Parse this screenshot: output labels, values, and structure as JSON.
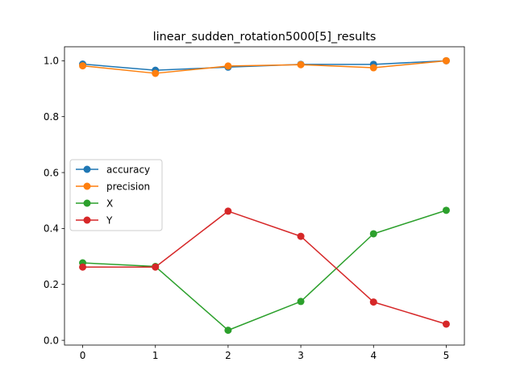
{
  "chart_data": {
    "type": "line",
    "title": "linear_sudden_rotation5000[5]_results",
    "xlabel": "",
    "ylabel": "",
    "x": [
      0,
      1,
      2,
      3,
      4,
      5
    ],
    "xticks": [
      "0",
      "1",
      "2",
      "3",
      "4",
      "5"
    ],
    "yticks": [
      "0.0",
      "0.2",
      "0.4",
      "0.6",
      "0.8",
      "1.0"
    ],
    "xlim": [
      -0.25,
      5.25
    ],
    "ylim": [
      -0.017,
      1.05
    ],
    "grid": false,
    "legend_position": "center-left",
    "series": [
      {
        "name": "accuracy",
        "color": "#1f77b4",
        "values": [
          0.988,
          0.966,
          0.977,
          0.987,
          0.987,
          1.0
        ]
      },
      {
        "name": "precision",
        "color": "#ff7f0e",
        "values": [
          0.982,
          0.955,
          0.981,
          0.986,
          0.975,
          1.0
        ]
      },
      {
        "name": "X",
        "color": "#2ca02c",
        "values": [
          0.277,
          0.264,
          0.036,
          0.139,
          0.381,
          0.465
        ]
      },
      {
        "name": "Y",
        "color": "#d62728",
        "values": [
          0.262,
          0.262,
          0.462,
          0.372,
          0.137,
          0.058
        ]
      }
    ]
  }
}
